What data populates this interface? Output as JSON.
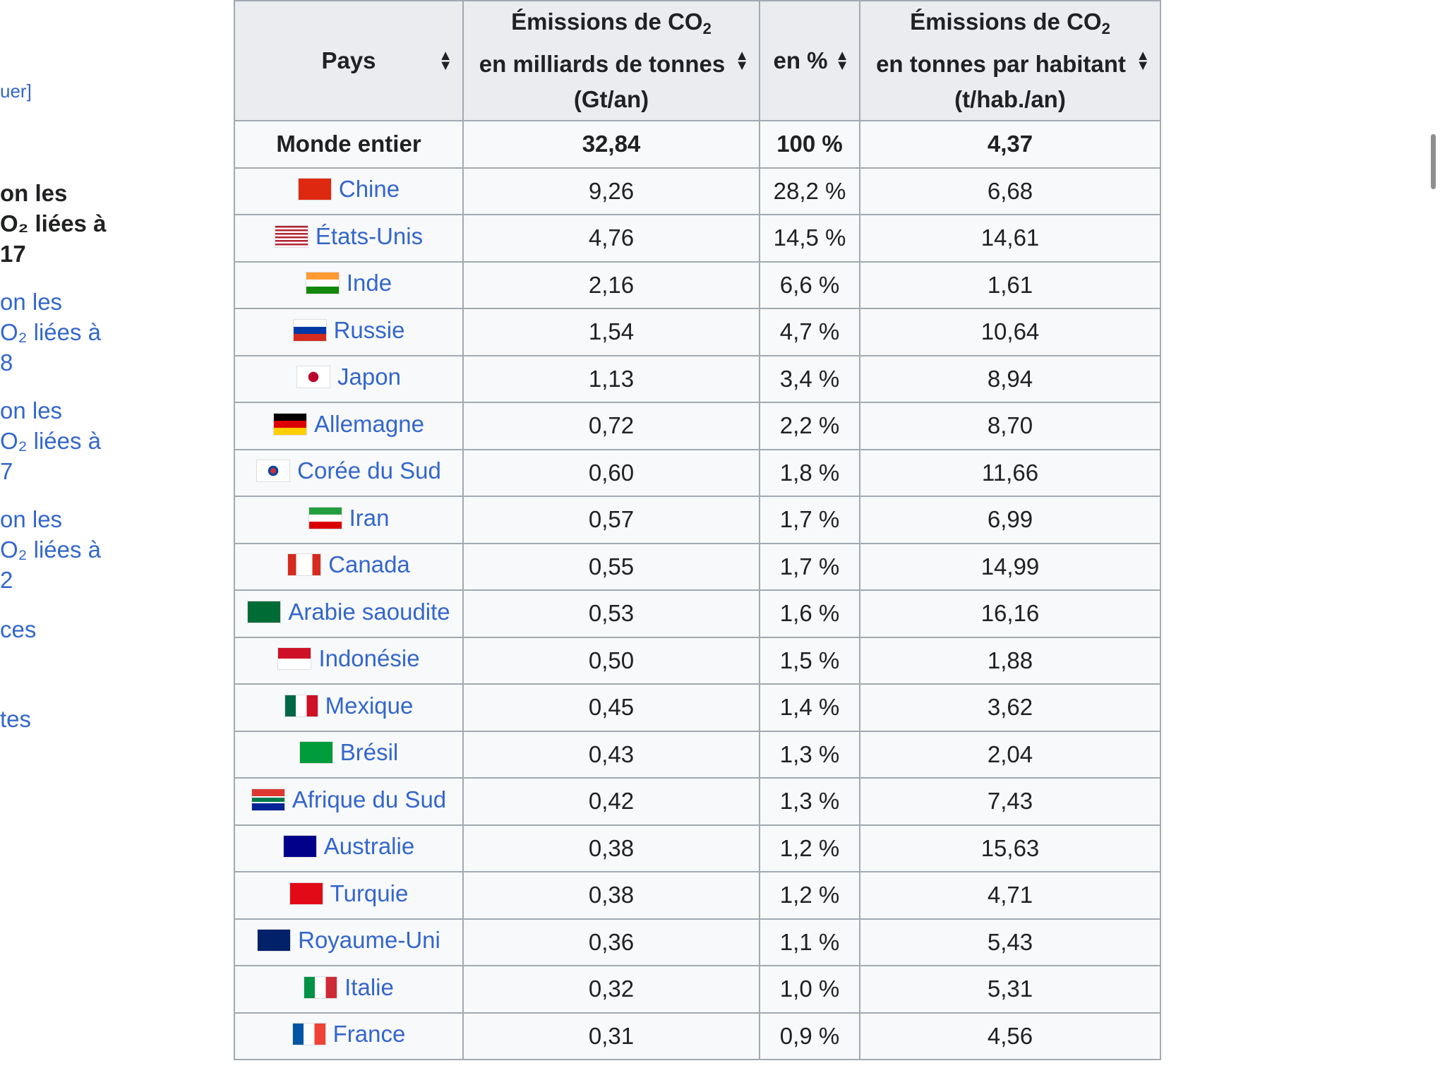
{
  "toc": {
    "edit_fragment": "uer]",
    "heading_lines": [
      "on les",
      "O₂ liées à",
      "17"
    ],
    "link1_lines": [
      "on les",
      "O₂ liées à",
      "8"
    ],
    "link2_lines": [
      "on les",
      "O₂ liées à",
      "7"
    ],
    "link3_lines": [
      "on les",
      "O₂ liées à",
      "2"
    ],
    "link4": "ces",
    "link5": "tes"
  },
  "table": {
    "headers": {
      "pays": "Pays",
      "gt_line1": "Émissions de CO",
      "gt_sub": "2",
      "gt_line2": "en milliards de tonnes",
      "gt_line3": "(Gt/an)",
      "pct": "en %",
      "hab_line1": "Émissions de CO",
      "hab_sub": "2",
      "hab_line2": "en tonnes par habitant",
      "hab_line3": "(t/hab./an)"
    },
    "world": {
      "name": "Monde entier",
      "gt": "32,84",
      "pct": "100 %",
      "hab": "4,37"
    },
    "rows": [
      {
        "name": "Chine",
        "gt": "9,26",
        "pct": "28,2 %",
        "hab": "6,68",
        "flag": "china"
      },
      {
        "name": "États-Unis",
        "gt": "4,76",
        "pct": "14,5 %",
        "hab": "14,61",
        "flag": "usa"
      },
      {
        "name": "Inde",
        "gt": "2,16",
        "pct": "6,6 %",
        "hab": "1,61",
        "flag": "india"
      },
      {
        "name": "Russie",
        "gt": "1,54",
        "pct": "4,7 %",
        "hab": "10,64",
        "flag": "russia"
      },
      {
        "name": "Japon",
        "gt": "1,13",
        "pct": "3,4 %",
        "hab": "8,94",
        "flag": "japan"
      },
      {
        "name": "Allemagne",
        "gt": "0,72",
        "pct": "2,2 %",
        "hab": "8,70",
        "flag": "germany"
      },
      {
        "name": "Corée du Sud",
        "gt": "0,60",
        "pct": "1,8 %",
        "hab": "11,66",
        "flag": "korea"
      },
      {
        "name": "Iran",
        "gt": "0,57",
        "pct": "1,7 %",
        "hab": "6,99",
        "flag": "iran"
      },
      {
        "name": "Canada",
        "gt": "0,55",
        "pct": "1,7 %",
        "hab": "14,99",
        "flag": "canada"
      },
      {
        "name": "Arabie saoudite",
        "gt": "0,53",
        "pct": "1,6 %",
        "hab": "16,16",
        "flag": "saudi"
      },
      {
        "name": "Indonésie",
        "gt": "0,50",
        "pct": "1,5 %",
        "hab": "1,88",
        "flag": "indonesia"
      },
      {
        "name": "Mexique",
        "gt": "0,45",
        "pct": "1,4 %",
        "hab": "3,62",
        "flag": "mexico"
      },
      {
        "name": "Brésil",
        "gt": "0,43",
        "pct": "1,3 %",
        "hab": "2,04",
        "flag": "brazil"
      },
      {
        "name": "Afrique du Sud",
        "gt": "0,42",
        "pct": "1,3 %",
        "hab": "7,43",
        "flag": "southafrica"
      },
      {
        "name": "Australie",
        "gt": "0,38",
        "pct": "1,2 %",
        "hab": "15,63",
        "flag": "australia"
      },
      {
        "name": "Turquie",
        "gt": "0,38",
        "pct": "1,2 %",
        "hab": "4,71",
        "flag": "turkey"
      },
      {
        "name": "Royaume-Uni",
        "gt": "0,36",
        "pct": "1,1 %",
        "hab": "5,43",
        "flag": "uk"
      },
      {
        "name": "Italie",
        "gt": "0,32",
        "pct": "1,0 %",
        "hab": "5,31",
        "flag": "italy"
      },
      {
        "name": "France",
        "gt": "0,31",
        "pct": "0,9 %",
        "hab": "4,56",
        "flag": "france"
      }
    ]
  },
  "colors": {
    "link": "#3366cc",
    "header_bg": "#eaecf0",
    "border": "#a2a9b1"
  }
}
